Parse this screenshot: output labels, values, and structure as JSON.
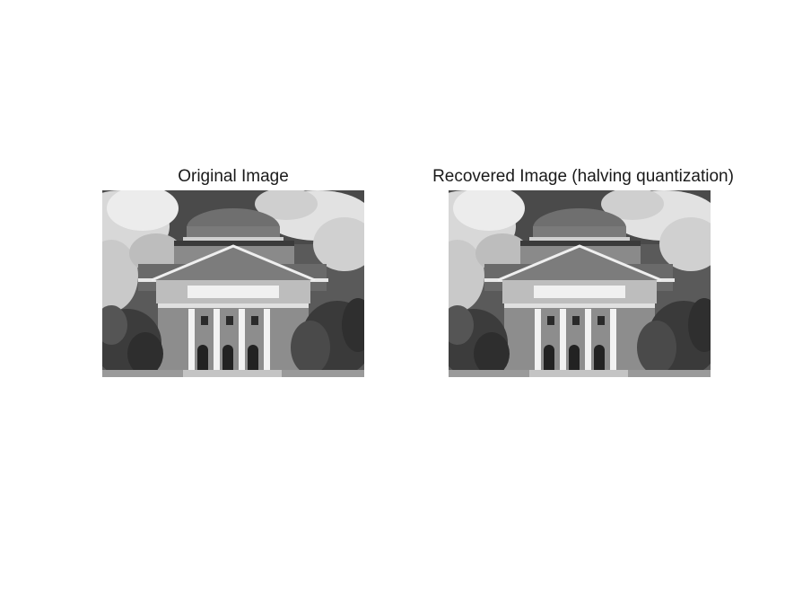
{
  "figure": {
    "panels": [
      {
        "title": "Original Image"
      },
      {
        "title": "Recovered Image (halving quantization)"
      }
    ],
    "image_subject": "grayscale photo of a domed neoclassical building with columns, trees and clouds"
  }
}
